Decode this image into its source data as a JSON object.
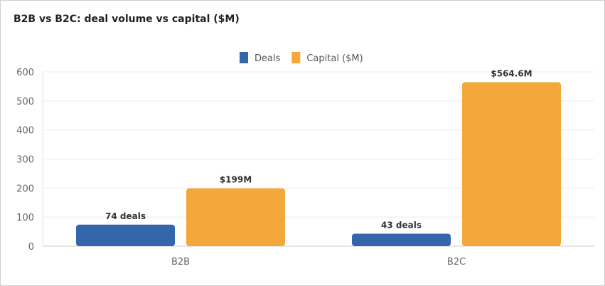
{
  "chart_data": {
    "type": "bar",
    "title": "B2B vs B2C: deal volume vs capital ($M)",
    "categories": [
      "B2B",
      "B2C"
    ],
    "series": [
      {
        "name": "Deals",
        "values": [
          74,
          43
        ],
        "labels": [
          "74 deals",
          "43 deals"
        ],
        "color": "#3366aa"
      },
      {
        "name": "Capital ($M)",
        "values": [
          199,
          564.6
        ],
        "labels": [
          "$199M",
          "$564.6M"
        ],
        "color": "#f4a73b"
      }
    ],
    "yticks": [
      0,
      100,
      200,
      300,
      400,
      500,
      600
    ],
    "ylim": [
      0,
      600
    ],
    "grid": true,
    "legend": "top-center",
    "xlabel": "",
    "ylabel": ""
  }
}
